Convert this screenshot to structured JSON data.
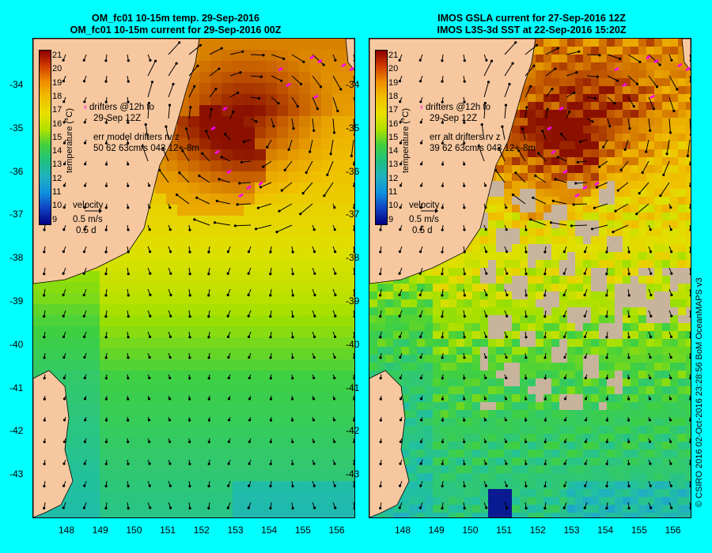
{
  "left": {
    "title1": "OM_fc01 10-15m temp. 29-Sep-2016",
    "title2": "OM_fc01 10-15m current for 29-Sep-2016 00Z",
    "drifters": "drifters @12h to",
    "drifters_time": "29-Sep 12Z",
    "err_label": "err model drifters rv z",
    "err_values": "50 62 63cm/s 043 12+-8m"
  },
  "right": {
    "title1": "IMOS GSLA current for 27-Sep-2016 12Z",
    "title2": "IMOS L3S-3d SST at 22-Sep-2016 15:20Z",
    "drifters": "drifters @12h to",
    "drifters_time": "29-Sep 12Z",
    "err_label": "err alt drifters rv z",
    "err_values": "39 62 63cm/s 043 12+-8m"
  },
  "colorbar": {
    "label": "temperature (°C)",
    "ticks": [
      "21",
      "20",
      "19",
      "18",
      "17",
      "16",
      "15",
      "14",
      "13",
      "12",
      "11",
      "10",
      "9"
    ]
  },
  "velocity": {
    "label": "velocity",
    "speed": "0.5 m/s",
    "time": "0.5 d"
  },
  "axes": {
    "lat_ticks": [
      "-34",
      "-35",
      "-36",
      "-37",
      "-38",
      "-39",
      "-40",
      "-41",
      "-42",
      "-43"
    ],
    "lon_ticks": [
      "148",
      "149",
      "150",
      "151",
      "152",
      "153",
      "154",
      "155",
      "156"
    ]
  },
  "credit": "© CSIRO 2016   02-Oct-2016 23:28:56 BoM OceanMAPS v3",
  "colors": {
    "background": "#00ffff",
    "land": "#f7c8a0",
    "missing": "#c8b49c",
    "drifter": "#ff00ff"
  }
}
